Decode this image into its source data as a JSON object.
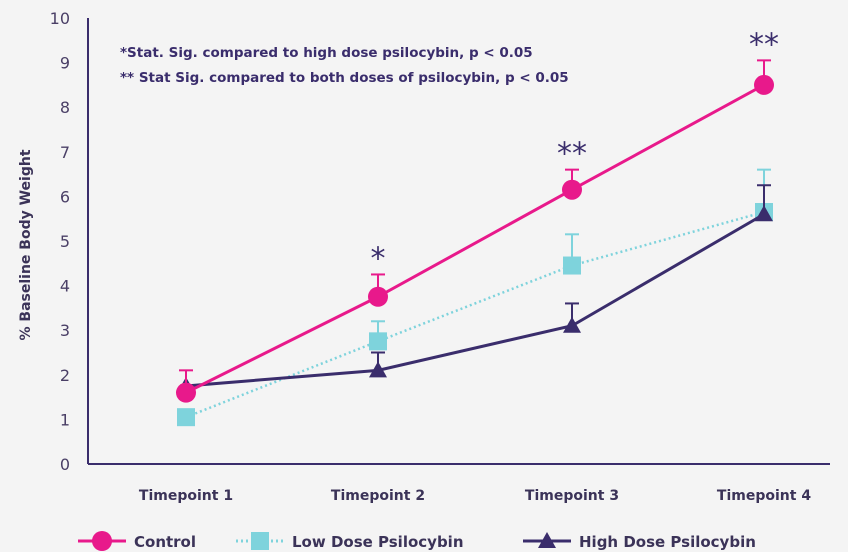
{
  "chart_data": {
    "type": "line",
    "categories": [
      "Timepoint 1",
      "Timepoint 2",
      "Timepoint 3",
      "Timepoint 4"
    ],
    "ylabel": "% Baseline Body Weight",
    "xlabel": "",
    "ylim": [
      0,
      10
    ],
    "yticks": [
      "0",
      "1",
      "2",
      "3",
      "4",
      "5",
      "6",
      "7",
      "8",
      "9",
      "10"
    ],
    "grid": false,
    "legend_position": "bottom",
    "annotations": [
      "*Stat. Sig. compared to high dose psilocybin,  p < 0.05",
      "** Stat Sig. compared to both doses of psilocybin,  p < 0.05"
    ],
    "significance_markers": [
      {
        "category": "Timepoint 2",
        "text": "*"
      },
      {
        "category": "Timepoint 3",
        "text": "**"
      },
      {
        "category": "Timepoint 4",
        "text": "**"
      }
    ],
    "series": [
      {
        "name": "Control",
        "color": "#e8198b",
        "marker": "circle",
        "line": "solid",
        "values": [
          1.6,
          3.75,
          6.15,
          8.5
        ],
        "error_upper": [
          0.5,
          0.5,
          0.45,
          0.55
        ]
      },
      {
        "name": "Low Dose Psilocybin",
        "color": "#7ed3dc",
        "marker": "square",
        "line": "dotted",
        "values": [
          1.05,
          2.75,
          4.45,
          5.65
        ],
        "error_upper": [
          0,
          0.45,
          0.7,
          0.95
        ]
      },
      {
        "name": "High Dose Psilocybin",
        "color": "#3a2d6c",
        "marker": "triangle",
        "line": "solid",
        "values": [
          1.75,
          2.1,
          3.1,
          5.6
        ],
        "error_upper": [
          0,
          0.4,
          0.5,
          0.65
        ]
      }
    ]
  }
}
